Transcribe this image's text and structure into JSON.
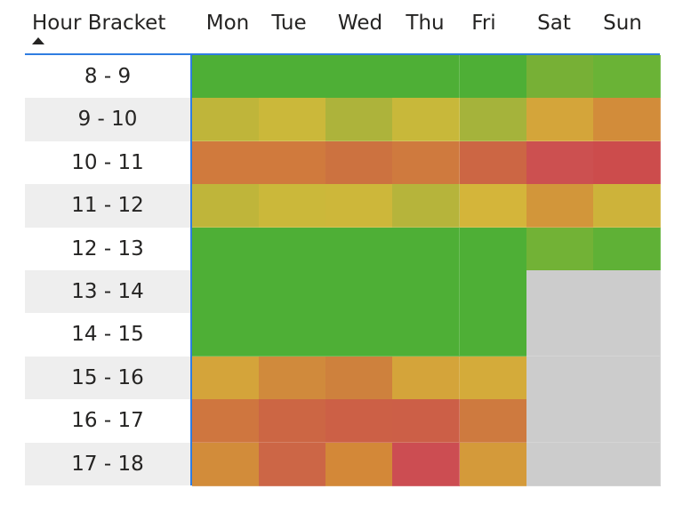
{
  "chart_data": {
    "type": "heatmap",
    "row_header": "Hour Bracket",
    "columns": [
      "Mon",
      "Tue",
      "Wed",
      "Thu",
      "Fri",
      "Sat",
      "Sun"
    ],
    "rows": [
      "8 - 9",
      "9 - 10",
      "10 - 11",
      "11 - 12",
      "12 - 13",
      "13 - 14",
      "14 - 15",
      "15 - 16",
      "16 - 17",
      "17 - 18"
    ],
    "cells": [
      [
        "#4eaf36",
        "#4eaf36",
        "#4eaf36",
        "#4eaf36",
        "#4eaf36",
        "#77b036",
        "#6ab336"
      ],
      [
        "#bfb53a",
        "#cbb83a",
        "#adb33b",
        "#c8b83a",
        "#a5b33b",
        "#d4a53a",
        "#d28c3a"
      ],
      [
        "#d07a3d",
        "#d07a3d",
        "#cc7240",
        "#cf7a3e",
        "#cc6644",
        "#cc5050",
        "#cc4c4c"
      ],
      [
        "#bfb53a",
        "#cbb83a",
        "#cdb73a",
        "#b6b43b",
        "#d4b53a",
        "#d2963a",
        "#cdb33a"
      ],
      [
        "#4eaf36",
        "#4eaf36",
        "#4eaf36",
        "#4eaf36",
        "#4eaf36",
        "#72b236",
        "#5fb136"
      ],
      [
        "#4eaf36",
        "#4eaf36",
        "#4eaf36",
        "#4eaf36",
        "#4eaf36",
        "#cccccc",
        "#cccccc"
      ],
      [
        "#4eaf36",
        "#4eaf36",
        "#4eaf36",
        "#4eaf36",
        "#4eaf36",
        "#cccccc",
        "#cccccc"
      ],
      [
        "#d4a43a",
        "#d08a3c",
        "#ce813d",
        "#d4a43a",
        "#d4ab3a",
        "#cccccc",
        "#cccccc"
      ],
      [
        "#cf763f",
        "#cc6644",
        "#cc6046",
        "#cc5f47",
        "#ce7a3f",
        "#cccccc",
        "#cccccc"
      ],
      [
        "#d28c3a",
        "#cc6646",
        "#d38838",
        "#cc4d52",
        "#d49a3a",
        "#cccccc",
        "#cccccc"
      ]
    ],
    "sort": "ascending",
    "grid": false,
    "legend": "none"
  }
}
